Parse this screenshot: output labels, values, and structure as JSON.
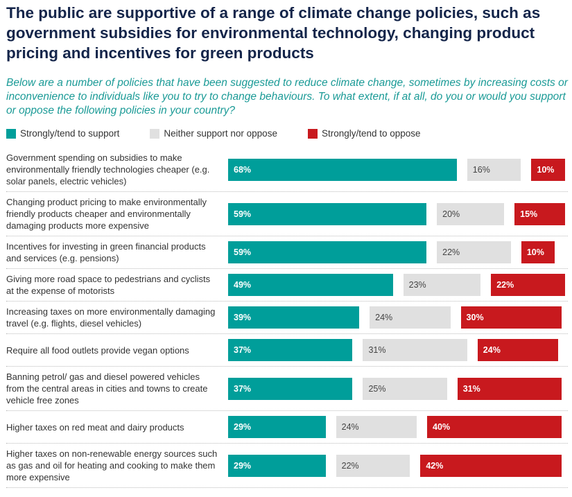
{
  "chart_data": {
    "type": "bar",
    "orientation": "horizontal",
    "stacking": "split",
    "title": "The public are supportive of a range of climate change policies, such as government subsidies for environmental technology, changing product pricing and incentives for green products",
    "subtitle": "Below are a number of policies that have been suggested to reduce climate change, sometimes by increasing costs or inconvenience to individuals like you to try to change behaviours. To what extent, if at all, do you or would you support or oppose the following policies in your country?",
    "categories": [
      "Government spending on subsidies to make environmentally friendly technologies cheaper (e.g. solar panels, electric vehicles)",
      "Changing product pricing to make environmentally friendly products cheaper and environmentally damaging products more expensive",
      "Incentives for investing in green financial products and services (e.g. pensions)",
      "Giving more road space to pedestrians and cyclists at the expense of motorists",
      "Increasing taxes on more environmentally damaging travel (e.g. flights, diesel vehicles)",
      "Require all food outlets provide vegan options",
      "Banning petrol/ gas and diesel powered vehicles from the central areas in cities and towns to create vehicle free zones",
      "Higher taxes on red meat and dairy products",
      "Higher taxes on non-renewable energy sources such as gas and oil for heating and cooking to make them more expensive"
    ],
    "series": [
      {
        "name": "Strongly/tend to support",
        "color": "#009e9a",
        "values": [
          68,
          59,
          59,
          49,
          39,
          37,
          37,
          29,
          29
        ],
        "value_labels": [
          "68%",
          "59%",
          "59%",
          "49%",
          "39%",
          "37%",
          "37%",
          "29%",
          "29%"
        ]
      },
      {
        "name": "Neither support nor oppose",
        "color": "#e0e0e0",
        "values": [
          16,
          20,
          22,
          23,
          24,
          31,
          25,
          24,
          22
        ],
        "value_labels": [
          "16%",
          "20%",
          "22%",
          "23%",
          "24%",
          "31%",
          "25%",
          "24%",
          "22%"
        ]
      },
      {
        "name": "Strongly/tend to oppose",
        "color": "#c8191e",
        "values": [
          10,
          15,
          10,
          22,
          30,
          24,
          31,
          40,
          42
        ],
        "value_labels": [
          "10%",
          "15%",
          "10%",
          "22%",
          "30%",
          "24%",
          "31%",
          "40%",
          "42%"
        ]
      }
    ]
  }
}
